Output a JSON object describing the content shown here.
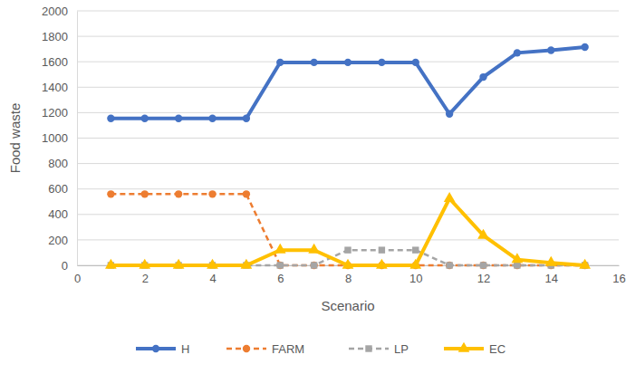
{
  "chart_data": {
    "type": "line",
    "x_label": "Scenario",
    "y_label": "Food waste",
    "x": [
      1,
      2,
      3,
      4,
      5,
      6,
      7,
      8,
      9,
      10,
      11,
      12,
      13,
      14,
      15
    ],
    "series": [
      {
        "name": "H",
        "color": "#4472c4",
        "marker": "circle",
        "line_style": "solid",
        "values": [
          1155,
          1155,
          1155,
          1155,
          1155,
          1595,
          1595,
          1595,
          1595,
          1595,
          1190,
          1480,
          1670,
          1690,
          1715
        ]
      },
      {
        "name": "FARM",
        "color": "#ed7d31",
        "marker": "circle",
        "line_style": "dashed",
        "values": [
          560,
          560,
          560,
          560,
          560,
          0,
          0,
          0,
          0,
          0,
          0,
          0,
          0,
          0,
          0
        ]
      },
      {
        "name": "LP",
        "color": "#a5a5a5",
        "marker": "square",
        "line_style": "dashed",
        "values": [
          0,
          0,
          0,
          0,
          0,
          0,
          0,
          120,
          120,
          120,
          0,
          0,
          0,
          0,
          0
        ]
      },
      {
        "name": "EC",
        "color": "#ffc000",
        "marker": "triangle",
        "line_style": "solid",
        "values": [
          0,
          0,
          0,
          0,
          0,
          120,
          120,
          0,
          0,
          0,
          525,
          235,
          45,
          20,
          0
        ]
      }
    ],
    "xlim": [
      0,
      16
    ],
    "xticks": [
      0,
      2,
      4,
      6,
      8,
      10,
      12,
      14,
      16
    ],
    "ylim": [
      0,
      2000
    ],
    "yticks": [
      0,
      200,
      400,
      600,
      800,
      1000,
      1200,
      1400,
      1600,
      1800,
      2000
    ],
    "grid": true,
    "legend": "bottom"
  }
}
